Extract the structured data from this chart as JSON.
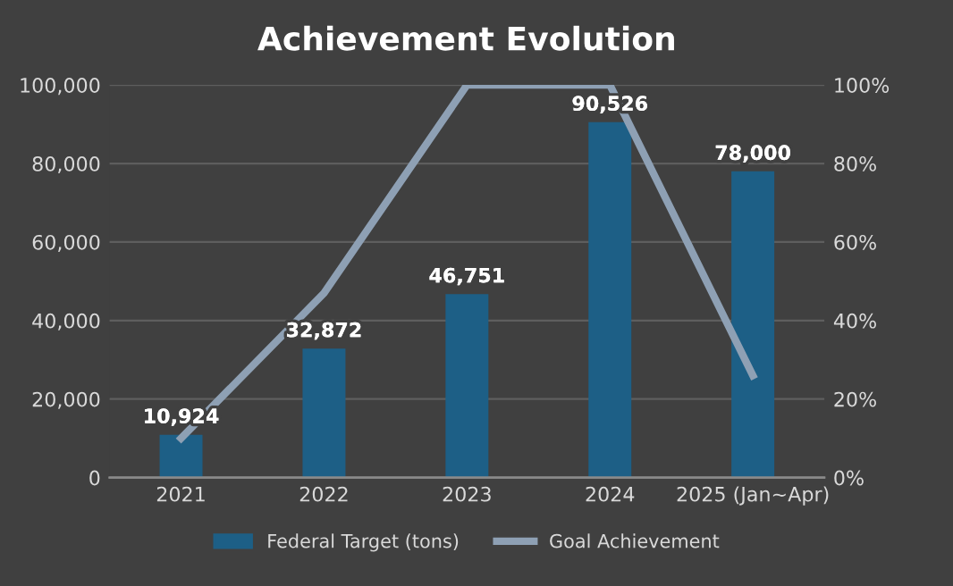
{
  "chart_data": {
    "type": "bar",
    "title": "Achievement Evolution",
    "categories": [
      "2021",
      "2022",
      "2023",
      "2024",
      "2025 (Jan~Apr)"
    ],
    "series": [
      {
        "name": "Federal Target (tons)",
        "color": "#1d5f86",
        "values": [
          10924,
          32872,
          46751,
          90526,
          78000
        ],
        "value_labels": [
          "10,924",
          "32,872",
          "46,751",
          "90,526",
          "78,000"
        ]
      },
      {
        "name": "Goal Achievement",
        "type": "line",
        "axis": "y2",
        "color": "#8ea0b4",
        "values": [
          10,
          47,
          100,
          100,
          26
        ]
      }
    ],
    "ylim": [
      0,
      100000
    ],
    "yticks": [
      {
        "value": 0,
        "label": "0"
      },
      {
        "value": 20000,
        "label": "20,000"
      },
      {
        "value": 40000,
        "label": "40,000"
      },
      {
        "value": 60000,
        "label": "60,000"
      },
      {
        "value": 80000,
        "label": "80,000"
      },
      {
        "value": 100000,
        "label": "100,000"
      }
    ],
    "y2lim": [
      0,
      100
    ],
    "y2ticks": [
      {
        "value": 0,
        "label": "0%"
      },
      {
        "value": 20,
        "label": "20%"
      },
      {
        "value": 40,
        "label": "40%"
      },
      {
        "value": 60,
        "label": "60%"
      },
      {
        "value": 80,
        "label": "80%"
      },
      {
        "value": 100,
        "label": "100%"
      }
    ],
    "grid": "y",
    "legend": "bottom",
    "marker": "none",
    "line_style": "solid"
  }
}
